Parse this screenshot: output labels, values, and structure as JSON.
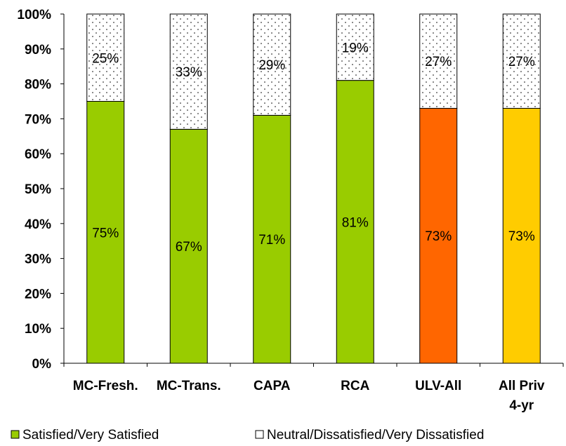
{
  "chart_data": {
    "type": "bar",
    "stacked": true,
    "categories": [
      [
        "MC-Fresh."
      ],
      [
        "MC-Trans."
      ],
      [
        "CAPA"
      ],
      [
        "RCA"
      ],
      [
        "ULV-All"
      ],
      [
        "All Priv",
        "4-yr"
      ]
    ],
    "series": [
      {
        "name": "Satisfied/Very Satisfied",
        "values": [
          75,
          67,
          71,
          81,
          73,
          73
        ],
        "labels": [
          "75%",
          "67%",
          "71%",
          "81%",
          "73%",
          "73%"
        ],
        "bar_colors": [
          "#99cc00",
          "#99cc00",
          "#99cc00",
          "#99cc00",
          "#ff6600",
          "#ffcc00"
        ],
        "legend_color": "#99cc00"
      },
      {
        "name": "Neutral/Dissatisfied/Very Dissatisfied",
        "values": [
          25,
          33,
          29,
          19,
          27,
          27
        ],
        "labels": [
          "25%",
          "33%",
          "29%",
          "19%",
          "27%",
          "27%"
        ],
        "pattern": "dotted",
        "legend_color": "#ffffff"
      }
    ],
    "ylim": [
      0,
      100
    ],
    "yticks": [
      "0%",
      "10%",
      "20%",
      "30%",
      "40%",
      "50%",
      "60%",
      "70%",
      "80%",
      "90%",
      "100%"
    ],
    "grid": false,
    "legend_position": "bottom"
  }
}
